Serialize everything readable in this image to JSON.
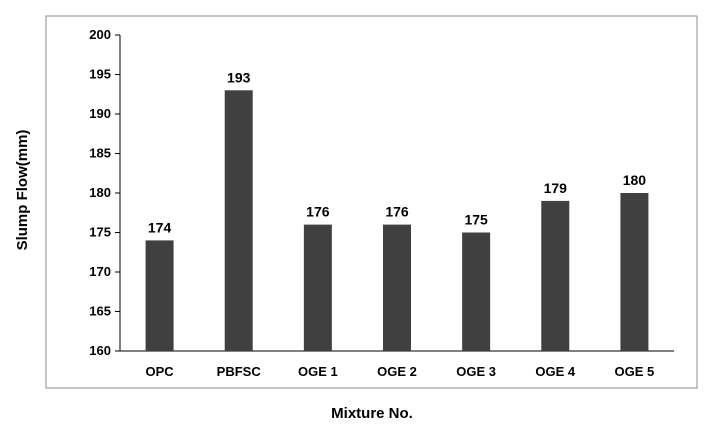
{
  "chart_data": {
    "type": "bar",
    "title": "",
    "xlabel": "Mixture No.",
    "ylabel": "Slump Flow(mm)",
    "categories": [
      "OPC",
      "PBFSC",
      "OGE 1",
      "OGE 2",
      "OGE 3",
      "OGE 4",
      "OGE 5"
    ],
    "values": [
      174,
      193,
      176,
      176,
      175,
      179,
      180
    ],
    "data_labels": [
      "174",
      "193",
      "176",
      "176",
      "175",
      "179",
      "180"
    ],
    "ylim": [
      160,
      200
    ],
    "yticks": [
      "160",
      "165",
      "170",
      "175",
      "180",
      "185",
      "190",
      "195",
      "200"
    ],
    "bar_color": "#404040",
    "grid": false,
    "legend": "none"
  }
}
